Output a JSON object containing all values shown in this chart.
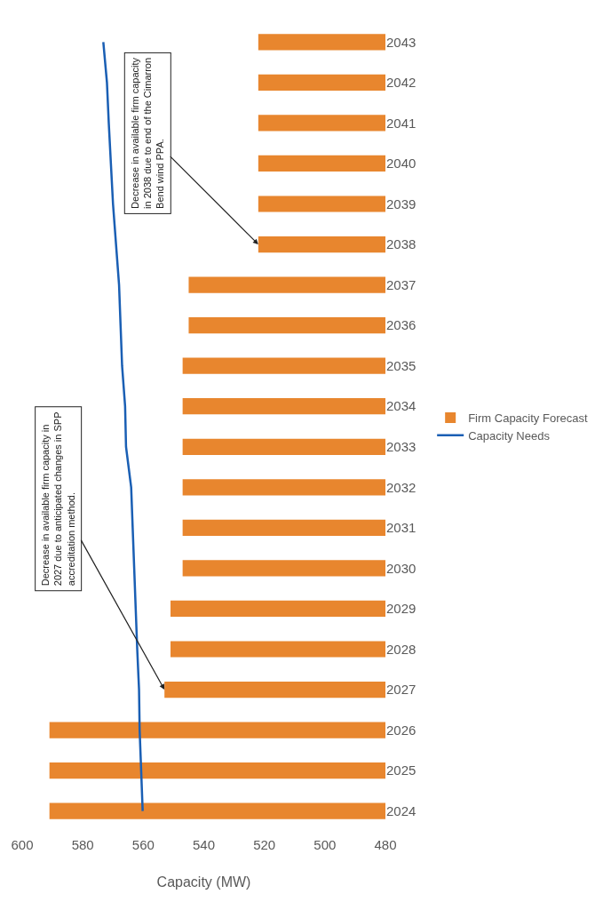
{
  "chart_data": {
    "type": "bar",
    "orientation": "horizontal",
    "xlabel": "Capacity (MW)",
    "categories": [
      "2043",
      "2042",
      "2041",
      "2040",
      "2039",
      "2038",
      "2037",
      "2036",
      "2035",
      "2034",
      "2033",
      "2032",
      "2031",
      "2030",
      "2029",
      "2028",
      "2027",
      "2026",
      "2025",
      "2024"
    ],
    "series": [
      {
        "name": "Firm Capacity Forecast",
        "color": "#e8862e",
        "values": [
          522,
          522,
          522,
          522,
          522,
          522,
          545,
          545,
          547,
          547,
          547,
          547,
          547,
          547,
          551,
          551,
          553,
          591,
          591,
          591
        ]
      },
      {
        "name": "Capacity Needs",
        "type": "line",
        "color": "#1a5fb4",
        "values": [
          573.2,
          572,
          571.4,
          570.7,
          570,
          569,
          568,
          567.5,
          567,
          566,
          565.7,
          564,
          563.5,
          563,
          562.5,
          562,
          561.4,
          561.2,
          560.7,
          560.2
        ]
      }
    ],
    "xlim": [
      600,
      480
    ],
    "xticks": [
      600,
      580,
      560,
      540,
      520,
      500,
      480
    ],
    "grid": false,
    "legend": "right",
    "marker": "none",
    "line_style": "solid",
    "annotations": [
      {
        "text": "Decrease in available firm capacity in\n2027 due to anticipated changes in SPP\naccreditation method.",
        "x": 553,
        "y": "2027"
      },
      {
        "text": "Decrease in available firm capacity\nin 2038 due to end of the Cimarron\nBend wind PPA.",
        "x": 522,
        "y": "2038"
      }
    ]
  }
}
